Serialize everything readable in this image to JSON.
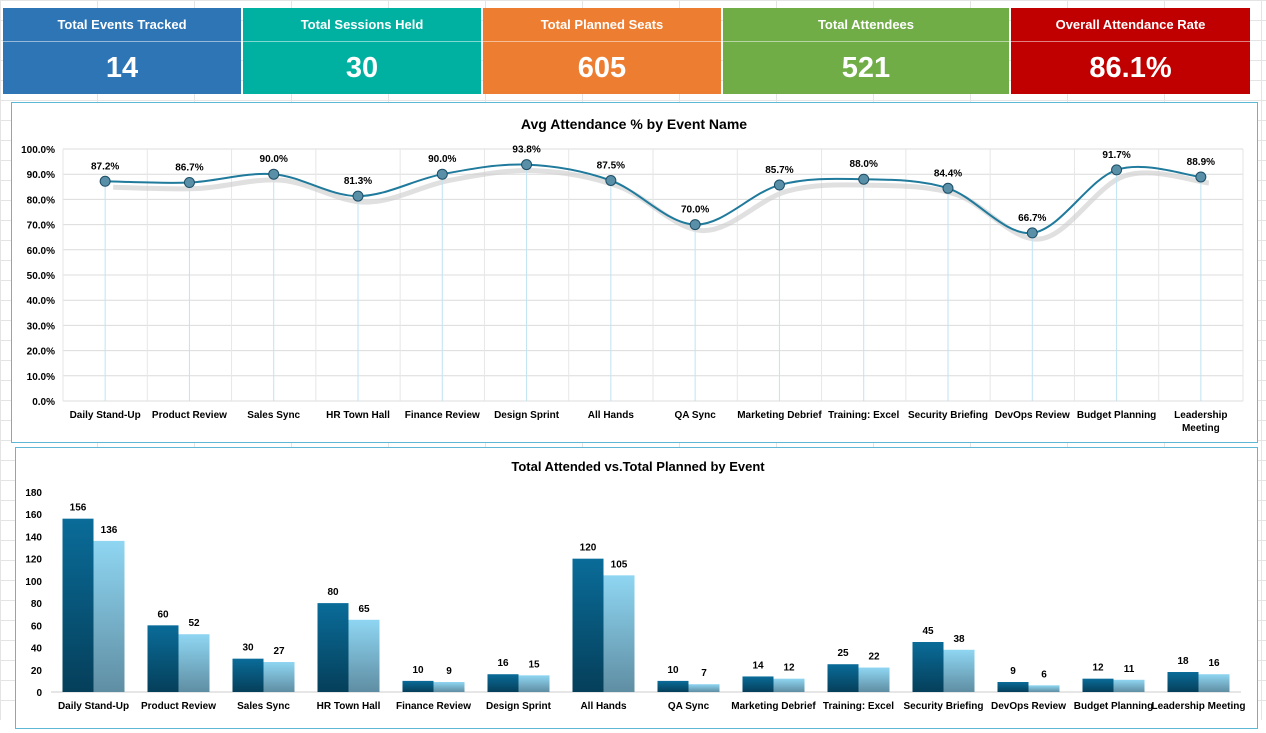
{
  "kpis": [
    {
      "label": "Total Events Tracked",
      "value": "14",
      "color": "#2e75b6"
    },
    {
      "label": "Total Sessions Held",
      "value": "30",
      "color": "#00b0a0"
    },
    {
      "label": "Total Planned Seats",
      "value": "605",
      "color": "#ed7d31"
    },
    {
      "label": "Total Attendees",
      "value": "521",
      "color": "#70ad47"
    },
    {
      "label": "Overall Attendance Rate",
      "value": "86.1%",
      "color": "#c00000"
    }
  ],
  "chart_data": [
    {
      "type": "line",
      "title": "Avg Attendance % by Event Name",
      "ylim": [
        0,
        100
      ],
      "yticks": [
        "0.0%",
        "10.0%",
        "20.0%",
        "30.0%",
        "40.0%",
        "50.0%",
        "60.0%",
        "70.0%",
        "80.0%",
        "90.0%",
        "100.0%"
      ],
      "categories": [
        "Daily Stand-Up",
        "Product Review",
        "Sales Sync",
        "HR Town Hall",
        "Finance Review",
        "Design Sprint",
        "All Hands",
        "QA Sync",
        "Marketing Debrief",
        "Training: Excel",
        "Security Briefing",
        "DevOps Review",
        "Budget Planning",
        "Leadership Meeting"
      ],
      "values": [
        87.2,
        86.7,
        90.0,
        81.3,
        90.0,
        93.8,
        87.5,
        70.0,
        85.7,
        88.0,
        84.4,
        66.7,
        91.7,
        88.9
      ],
      "labels": [
        "87.2%",
        "86.7%",
        "90.0%",
        "81.3%",
        "90.0%",
        "93.8%",
        "87.5%",
        "70.0%",
        "85.7%",
        "88.0%",
        "84.4%",
        "66.7%",
        "91.7%",
        "88.9%"
      ],
      "color": "#1f7a9c",
      "grid": true
    },
    {
      "type": "bar",
      "title": "Total Attended vs.Total Planned by Event",
      "ylim": [
        0,
        180
      ],
      "yticks": [
        "0",
        "20",
        "40",
        "60",
        "80",
        "100",
        "120",
        "140",
        "160",
        "180"
      ],
      "categories": [
        "Daily Stand-Up",
        "Product Review",
        "Sales Sync",
        "HR Town Hall",
        "Finance Review",
        "Design Sprint",
        "All Hands",
        "QA Sync",
        "Marketing Debrief",
        "Training: Excel",
        "Security Briefing",
        "DevOps Review",
        "Budget Planning",
        "Leadership Meeting"
      ],
      "series": [
        {
          "values": [
            156,
            60,
            30,
            80,
            10,
            16,
            120,
            10,
            14,
            25,
            45,
            9,
            12,
            18
          ],
          "color": "#0a6c99"
        },
        {
          "values": [
            136,
            52,
            27,
            65,
            9,
            15,
            105,
            7,
            12,
            22,
            38,
            6,
            11,
            16
          ],
          "color": "#8fd6f2"
        }
      ],
      "grid": false
    }
  ]
}
